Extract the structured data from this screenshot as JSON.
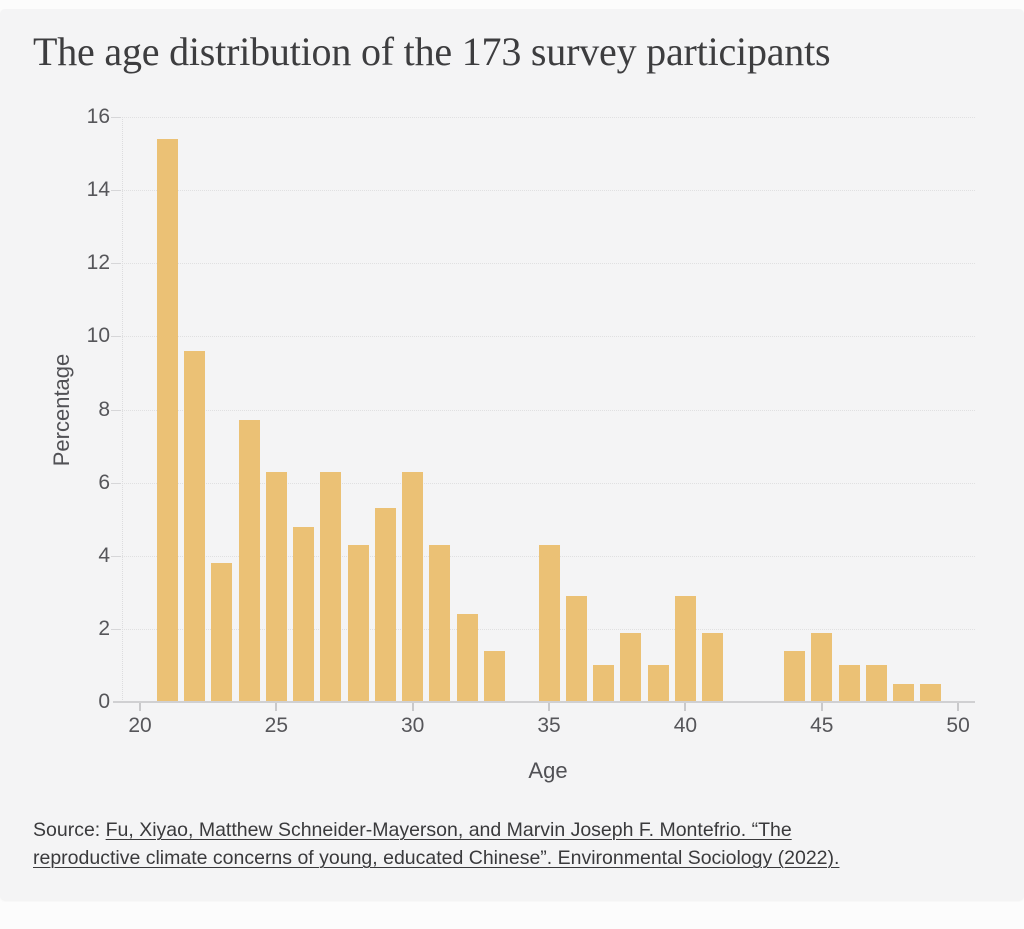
{
  "title": "The age distribution of the 173 survey participants",
  "footer": {
    "prefix": "Source:",
    "citation": "Fu, Xiyao, Matthew Schneider-Mayerson, and Marvin Joseph F. Montefrio. “The reproductive climate concerns of young, educated Chinese”. Environmental Sociology (2022)."
  },
  "colors": {
    "bar": "#ebc175",
    "card_background": "#f4f4f5",
    "page_background": "#fcfcfc",
    "title_text": "#3d3d3f",
    "axis_text": "#56565a",
    "grid": "#e0e0e1"
  },
  "chart_data": {
    "type": "bar",
    "title": "The age distribution of the 173 survey participants",
    "xlabel": "Age",
    "ylabel": "Percentage",
    "x": [
      21,
      22,
      23,
      24,
      25,
      26,
      27,
      28,
      29,
      30,
      31,
      32,
      33,
      34,
      35,
      36,
      37,
      38,
      39,
      40,
      41,
      42,
      43,
      44,
      45,
      46,
      47,
      48,
      49
    ],
    "values": [
      15.4,
      9.6,
      3.8,
      7.7,
      6.3,
      4.8,
      6.3,
      4.3,
      5.3,
      6.3,
      4.3,
      2.4,
      1.4,
      0,
      4.3,
      2.9,
      1.0,
      1.9,
      1.0,
      2.9,
      1.9,
      0,
      0,
      1.4,
      1.9,
      1.0,
      1.0,
      0.5,
      0.5
    ],
    "xticks": [
      20,
      25,
      30,
      35,
      40,
      45,
      50
    ],
    "yticks": [
      0,
      2,
      4,
      6,
      8,
      10,
      12,
      14,
      16
    ],
    "xlim": [
      20,
      50
    ],
    "ylim": [
      0,
      16
    ],
    "grid": "horizontal-dotted",
    "legend": "none",
    "bar_color": "#ebc175"
  }
}
